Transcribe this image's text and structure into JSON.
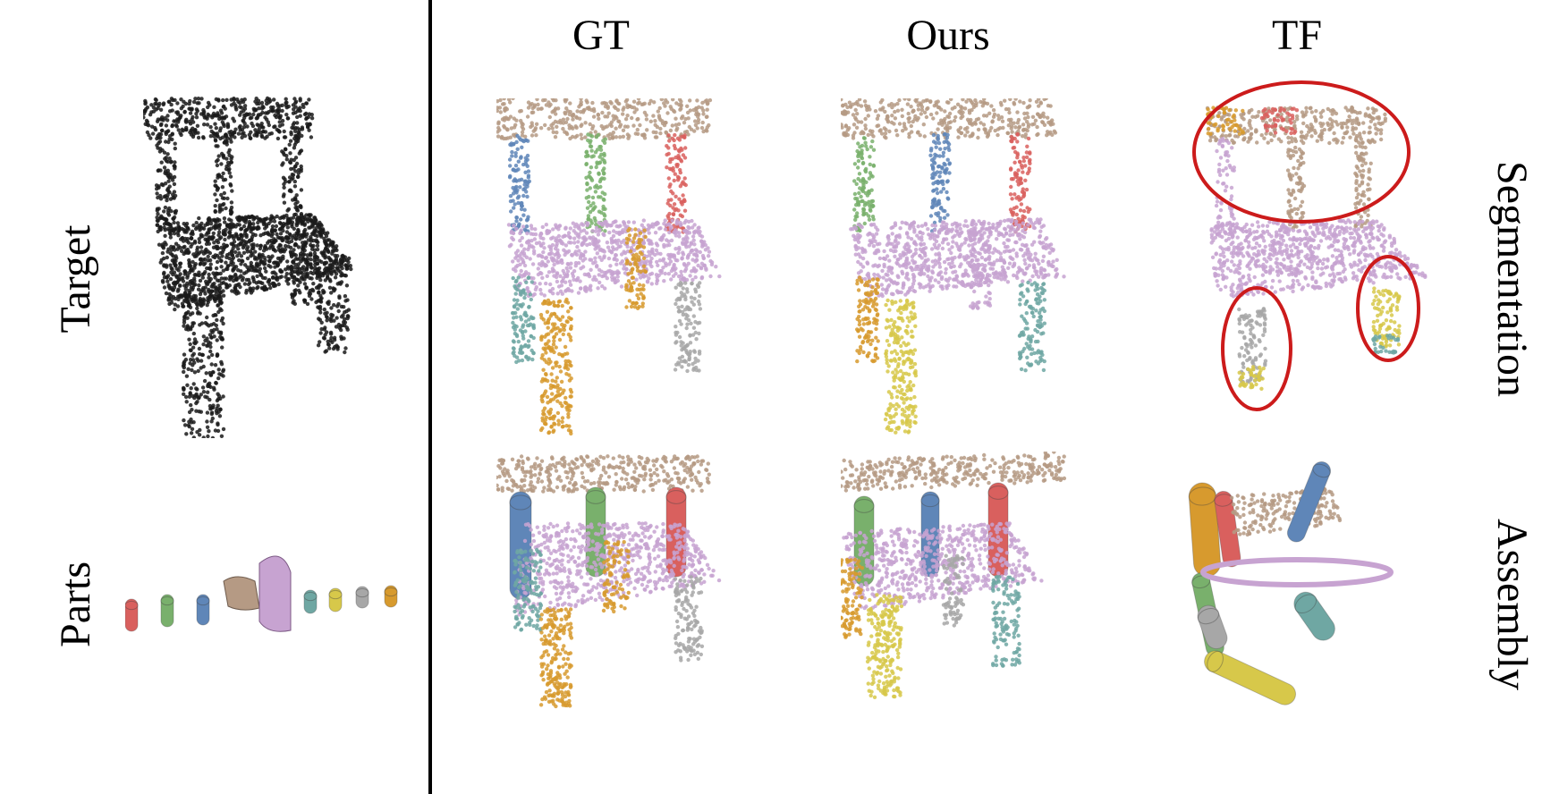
{
  "column_headers": {
    "gt": "GT",
    "ours": "Ours",
    "tf": "TF"
  },
  "left_labels": {
    "target": "Target",
    "parts": "Parts"
  },
  "right_labels": {
    "segmentation": "Segmentation",
    "assembly": "Assembly"
  },
  "colors": {
    "black_points": "#1a1a1a",
    "back_rail": "#b59a84",
    "seat": "#c7a3d1",
    "leg_blue": "#5f86b8",
    "leg_green": "#79b06c",
    "leg_red": "#d9605e",
    "leg_teal": "#6fa7a3",
    "leg_orange": "#d79a2e",
    "leg_gray": "#a7a7a7",
    "leg_yellow": "#d7c84a",
    "highlight_red": "#cc1b1b"
  }
}
